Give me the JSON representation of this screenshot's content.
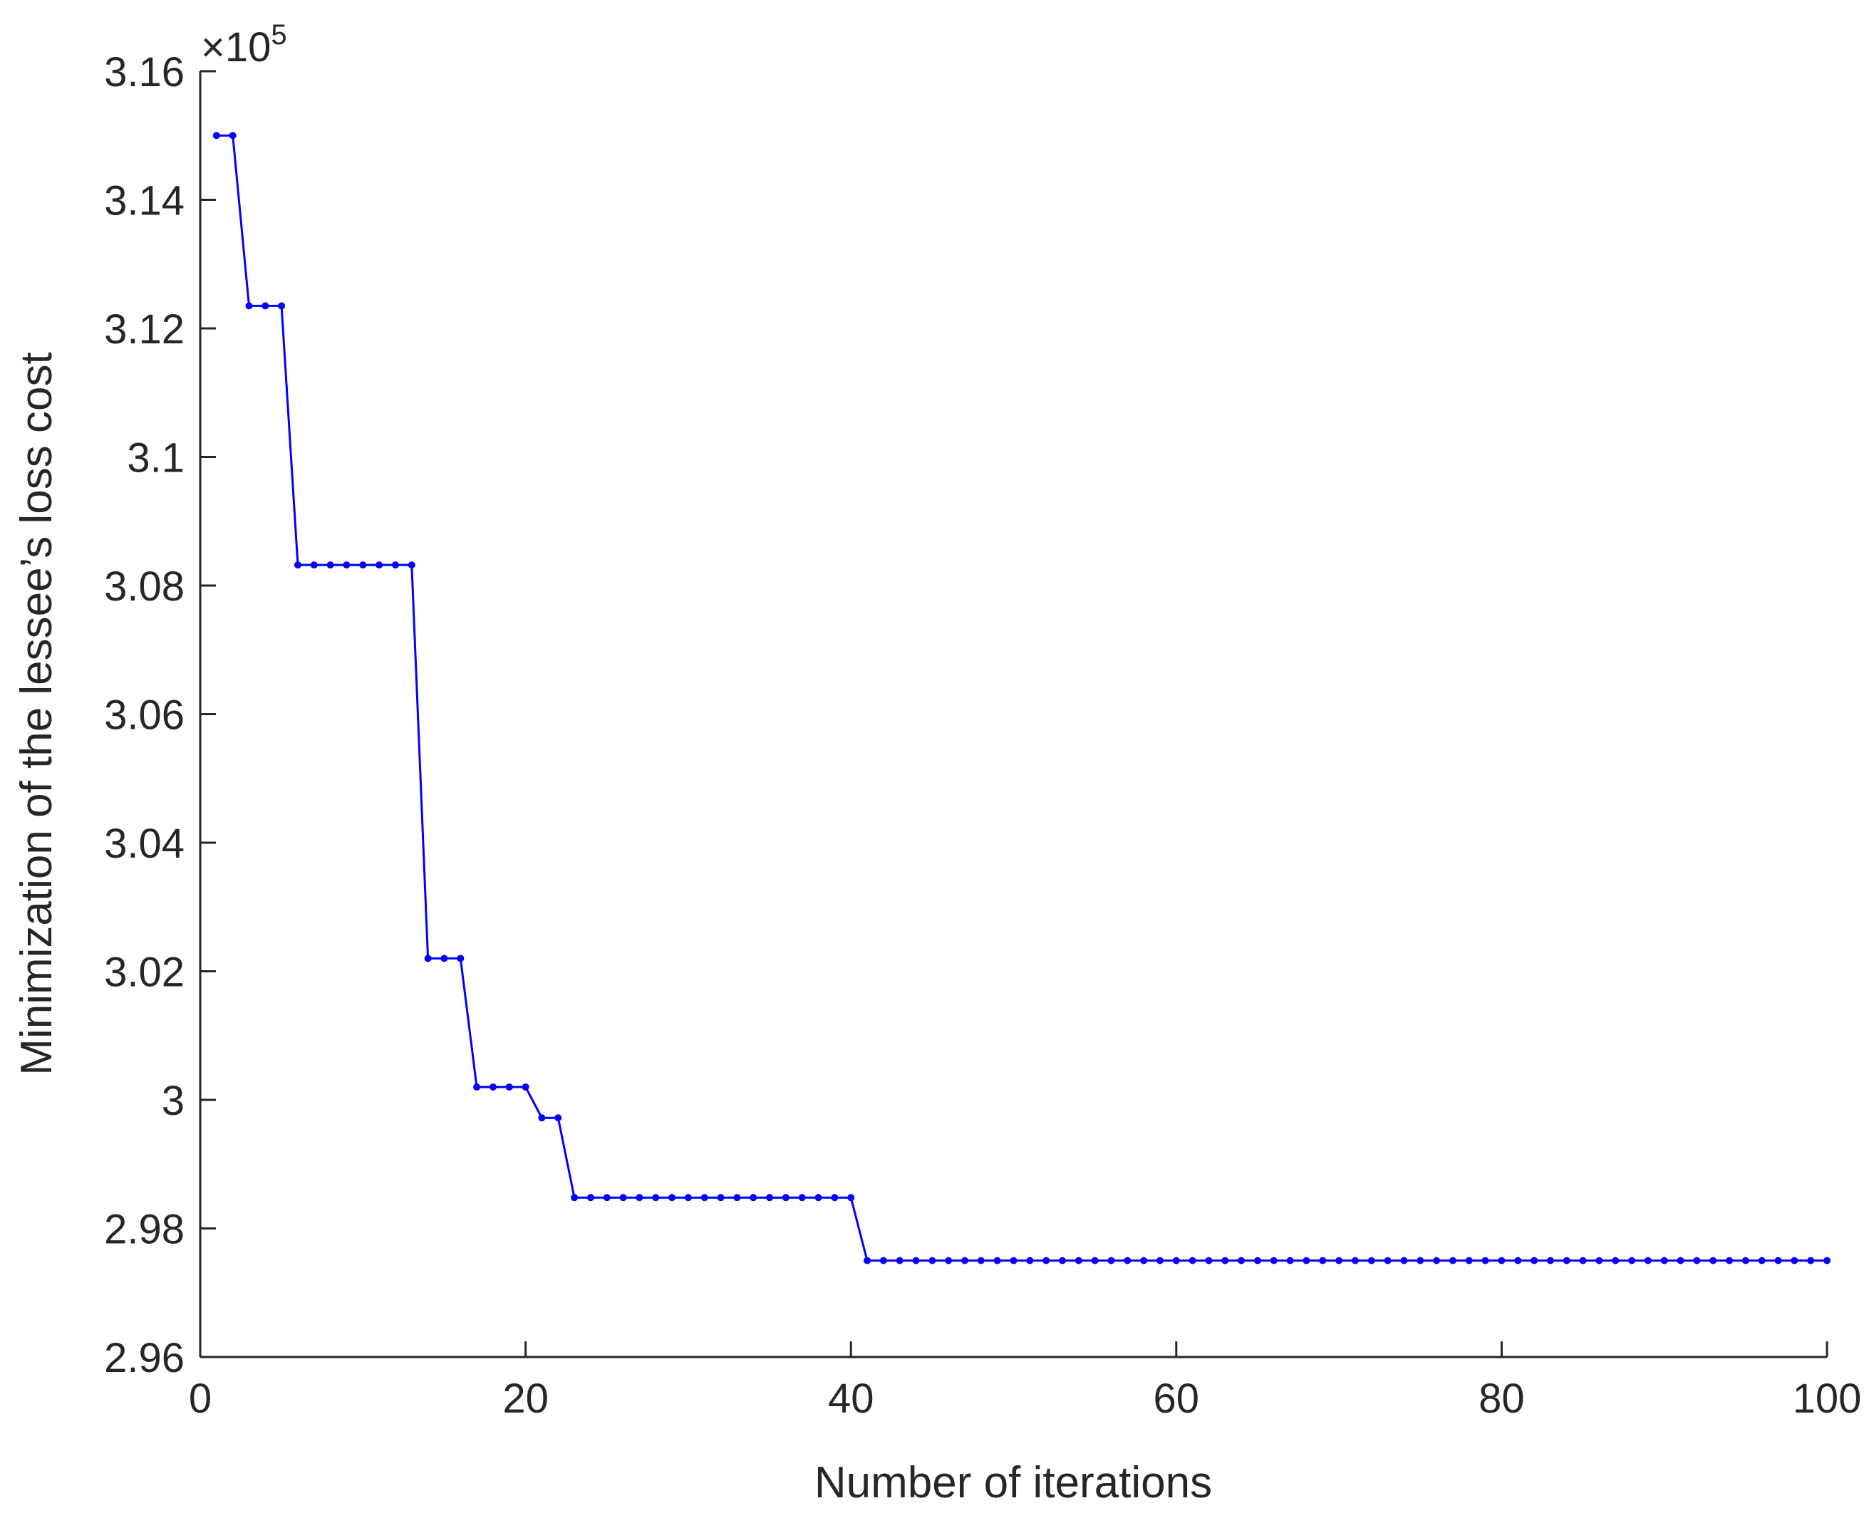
{
  "chart_data": {
    "type": "line",
    "title": "",
    "xlabel": "Number of iterations",
    "ylabel": "Minimization of the lessee’s loss cost",
    "y_exponent_label": {
      "base": "×10",
      "power": "5"
    },
    "xlim": [
      0,
      100
    ],
    "ylim": [
      2.96,
      3.16
    ],
    "y_scale": "linear",
    "x_ticks": [
      0,
      20,
      40,
      60,
      80,
      100
    ],
    "x_tick_labels": [
      "0",
      "20",
      "40",
      "60",
      "80",
      "100"
    ],
    "y_ticks": [
      2.96,
      2.98,
      3.0,
      3.02,
      3.04,
      3.06,
      3.08,
      3.1,
      3.12,
      3.14,
      3.16
    ],
    "y_tick_labels": [
      "2.96",
      "2.98",
      "3",
      "3.02",
      "3.04",
      "3.06",
      "3.08",
      "3.1",
      "3.12",
      "3.14",
      "3.16"
    ],
    "grid": false,
    "legend": "none",
    "series": [
      {
        "color": "#0000ff",
        "marker": "dot",
        "x": [
          1,
          2,
          3,
          4,
          5,
          6,
          7,
          8,
          9,
          10,
          11,
          12,
          13,
          14,
          15,
          16,
          17,
          18,
          19,
          20,
          21,
          22,
          23,
          24,
          25,
          26,
          27,
          28,
          29,
          30,
          31,
          32,
          33,
          34,
          35,
          36,
          37,
          38,
          39,
          40,
          41,
          42,
          43,
          44,
          45,
          46,
          47,
          48,
          49,
          50,
          51,
          52,
          53,
          54,
          55,
          56,
          57,
          58,
          59,
          60,
          61,
          62,
          63,
          64,
          65,
          66,
          67,
          68,
          69,
          70,
          71,
          72,
          73,
          74,
          75,
          76,
          77,
          78,
          79,
          80,
          81,
          82,
          83,
          84,
          85,
          86,
          87,
          88,
          89,
          90,
          91,
          92,
          93,
          94,
          95,
          96,
          97,
          98,
          99,
          100
        ],
        "y": [
          3.15,
          3.15,
          3.1235,
          3.1235,
          3.1235,
          3.0832,
          3.0832,
          3.0832,
          3.0832,
          3.0832,
          3.0832,
          3.0832,
          3.0832,
          3.022,
          3.022,
          3.022,
          3.002,
          3.002,
          3.002,
          3.002,
          2.9972,
          2.9972,
          2.9848,
          2.9848,
          2.9848,
          2.9848,
          2.9848,
          2.9848,
          2.9848,
          2.9848,
          2.9848,
          2.9848,
          2.9848,
          2.9848,
          2.9848,
          2.9848,
          2.9848,
          2.9848,
          2.9848,
          2.9848,
          2.975,
          2.975,
          2.975,
          2.975,
          2.975,
          2.975,
          2.975,
          2.975,
          2.975,
          2.975,
          2.975,
          2.975,
          2.975,
          2.975,
          2.975,
          2.975,
          2.975,
          2.975,
          2.975,
          2.975,
          2.975,
          2.975,
          2.975,
          2.975,
          2.975,
          2.975,
          2.975,
          2.975,
          2.975,
          2.975,
          2.975,
          2.975,
          2.975,
          2.975,
          2.975,
          2.975,
          2.975,
          2.975,
          2.975,
          2.975,
          2.975,
          2.975,
          2.975,
          2.975,
          2.975,
          2.975,
          2.975,
          2.975,
          2.975,
          2.975,
          2.975,
          2.975,
          2.975,
          2.975,
          2.975,
          2.975,
          2.975,
          2.975,
          2.975,
          2.975
        ]
      }
    ]
  }
}
